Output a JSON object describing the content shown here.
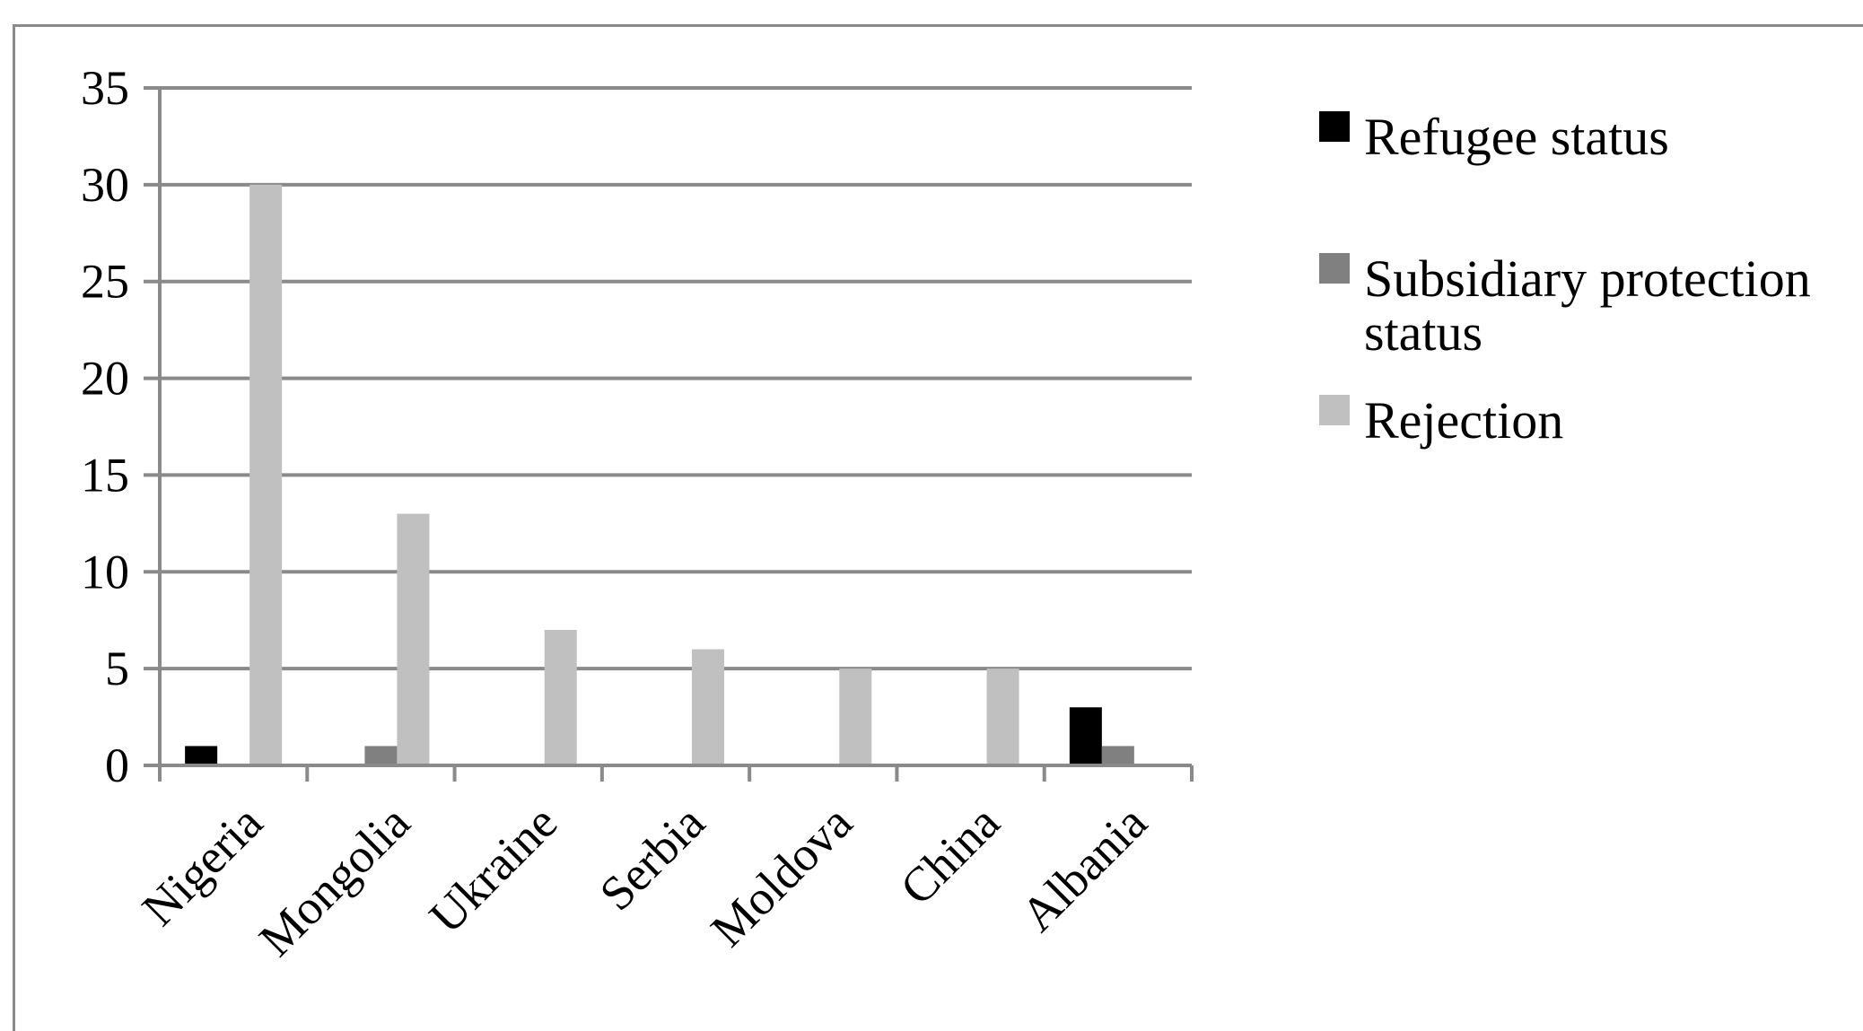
{
  "chart_data": {
    "type": "bar",
    "categories": [
      "Nigeria",
      "Mongolia",
      "Ukraine",
      "Serbia",
      "Moldova",
      "China",
      "Albania"
    ],
    "series": [
      {
        "name": "Refugee status",
        "color": "#000000",
        "values": [
          1,
          0,
          0,
          0,
          0,
          0,
          3
        ]
      },
      {
        "name": "Subsidiary protection status",
        "color": "#808080",
        "values": [
          0,
          1,
          0,
          0,
          0,
          0,
          1
        ]
      },
      {
        "name": "Rejection",
        "color": "#c0c0c0",
        "values": [
          30,
          13,
          7,
          6,
          5,
          5,
          0
        ]
      }
    ],
    "title": "",
    "xlabel": "",
    "ylabel": "",
    "ylim": [
      0,
      35
    ],
    "yticks": [
      "0",
      "5",
      "10",
      "15",
      "20",
      "25",
      "30",
      "35"
    ],
    "grid": true,
    "legend_position": "right",
    "legend_entries": [
      {
        "lines": [
          "Refugee status"
        ]
      },
      {
        "lines": [
          "Subsidiary protection",
          "status"
        ]
      },
      {
        "lines": [
          "Rejection"
        ]
      }
    ]
  },
  "colors": {
    "gridline": "#8a8a8a",
    "axis": "#8a8a8a"
  }
}
